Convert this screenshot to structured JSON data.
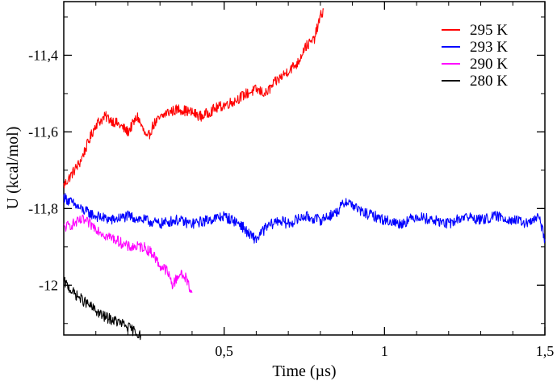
{
  "chart_data": {
    "type": "line",
    "xlabel": "Time (µs)",
    "ylabel": "U (kcal/mol)",
    "xlim": [
      0,
      1.5
    ],
    "ylim": [
      -12.13,
      -11.26
    ],
    "xticks": [
      {
        "value": 0.5,
        "label": "0,5"
      },
      {
        "value": 1.0,
        "label": "1"
      },
      {
        "value": 1.5,
        "label": "1,5"
      }
    ],
    "yticks": [
      {
        "value": -11.4,
        "label": "-11,4"
      },
      {
        "value": -11.6,
        "label": "-11,6"
      },
      {
        "value": -11.8,
        "label": "-11,8"
      },
      {
        "value": -12.0,
        "label": "-12"
      }
    ],
    "legend_position": "top-right",
    "grid": false,
    "series": [
      {
        "name": "295 K",
        "color": "#ff0000",
        "points": [
          [
            0.0,
            -11.74
          ],
          [
            0.05,
            -11.68
          ],
          [
            0.08,
            -11.62
          ],
          [
            0.1,
            -11.58
          ],
          [
            0.13,
            -11.56
          ],
          [
            0.17,
            -11.58
          ],
          [
            0.2,
            -11.6
          ],
          [
            0.23,
            -11.56
          ],
          [
            0.26,
            -11.62
          ],
          [
            0.28,
            -11.58
          ],
          [
            0.32,
            -11.55
          ],
          [
            0.36,
            -11.54
          ],
          [
            0.4,
            -11.55
          ],
          [
            0.43,
            -11.56
          ],
          [
            0.47,
            -11.54
          ],
          [
            0.5,
            -11.53
          ],
          [
            0.53,
            -11.52
          ],
          [
            0.57,
            -11.5
          ],
          [
            0.6,
            -11.49
          ],
          [
            0.63,
            -11.5
          ],
          [
            0.66,
            -11.47
          ],
          [
            0.7,
            -11.44
          ],
          [
            0.73,
            -11.42
          ],
          [
            0.75,
            -11.38
          ],
          [
            0.78,
            -11.36
          ],
          [
            0.8,
            -11.3
          ],
          [
            0.81,
            -11.28
          ]
        ]
      },
      {
        "name": "293 K",
        "color": "#0000ff",
        "points": [
          [
            0.0,
            -11.77
          ],
          [
            0.05,
            -11.8
          ],
          [
            0.1,
            -11.82
          ],
          [
            0.15,
            -11.83
          ],
          [
            0.2,
            -11.82
          ],
          [
            0.25,
            -11.83
          ],
          [
            0.3,
            -11.84
          ],
          [
            0.35,
            -11.83
          ],
          [
            0.4,
            -11.84
          ],
          [
            0.45,
            -11.83
          ],
          [
            0.5,
            -11.82
          ],
          [
            0.55,
            -11.84
          ],
          [
            0.58,
            -11.87
          ],
          [
            0.6,
            -11.88
          ],
          [
            0.63,
            -11.85
          ],
          [
            0.67,
            -11.83
          ],
          [
            0.7,
            -11.84
          ],
          [
            0.75,
            -11.82
          ],
          [
            0.8,
            -11.83
          ],
          [
            0.85,
            -11.81
          ],
          [
            0.88,
            -11.78
          ],
          [
            0.9,
            -11.79
          ],
          [
            0.93,
            -11.81
          ],
          [
            0.97,
            -11.82
          ],
          [
            1.0,
            -11.83
          ],
          [
            1.05,
            -11.84
          ],
          [
            1.1,
            -11.82
          ],
          [
            1.15,
            -11.83
          ],
          [
            1.2,
            -11.84
          ],
          [
            1.25,
            -11.82
          ],
          [
            1.3,
            -11.83
          ],
          [
            1.35,
            -11.82
          ],
          [
            1.4,
            -11.83
          ],
          [
            1.45,
            -11.84
          ],
          [
            1.48,
            -11.82
          ],
          [
            1.5,
            -11.88
          ]
        ]
      },
      {
        "name": "290 K",
        "color": "#ff00ff",
        "points": [
          [
            0.0,
            -11.85
          ],
          [
            0.03,
            -11.84
          ],
          [
            0.06,
            -11.83
          ],
          [
            0.1,
            -11.85
          ],
          [
            0.13,
            -11.87
          ],
          [
            0.16,
            -11.88
          ],
          [
            0.2,
            -11.9
          ],
          [
            0.25,
            -11.9
          ],
          [
            0.28,
            -11.92
          ],
          [
            0.3,
            -11.95
          ],
          [
            0.32,
            -11.96
          ],
          [
            0.34,
            -12.0
          ],
          [
            0.36,
            -11.97
          ],
          [
            0.38,
            -11.98
          ],
          [
            0.4,
            -12.02
          ]
        ]
      },
      {
        "name": "280 K",
        "color": "#000000",
        "points": [
          [
            0.0,
            -11.99
          ],
          [
            0.03,
            -12.02
          ],
          [
            0.06,
            -12.04
          ],
          [
            0.09,
            -12.06
          ],
          [
            0.12,
            -12.08
          ],
          [
            0.15,
            -12.09
          ],
          [
            0.18,
            -12.1
          ],
          [
            0.2,
            -12.11
          ],
          [
            0.22,
            -12.12
          ],
          [
            0.24,
            -12.13
          ]
        ]
      }
    ]
  }
}
